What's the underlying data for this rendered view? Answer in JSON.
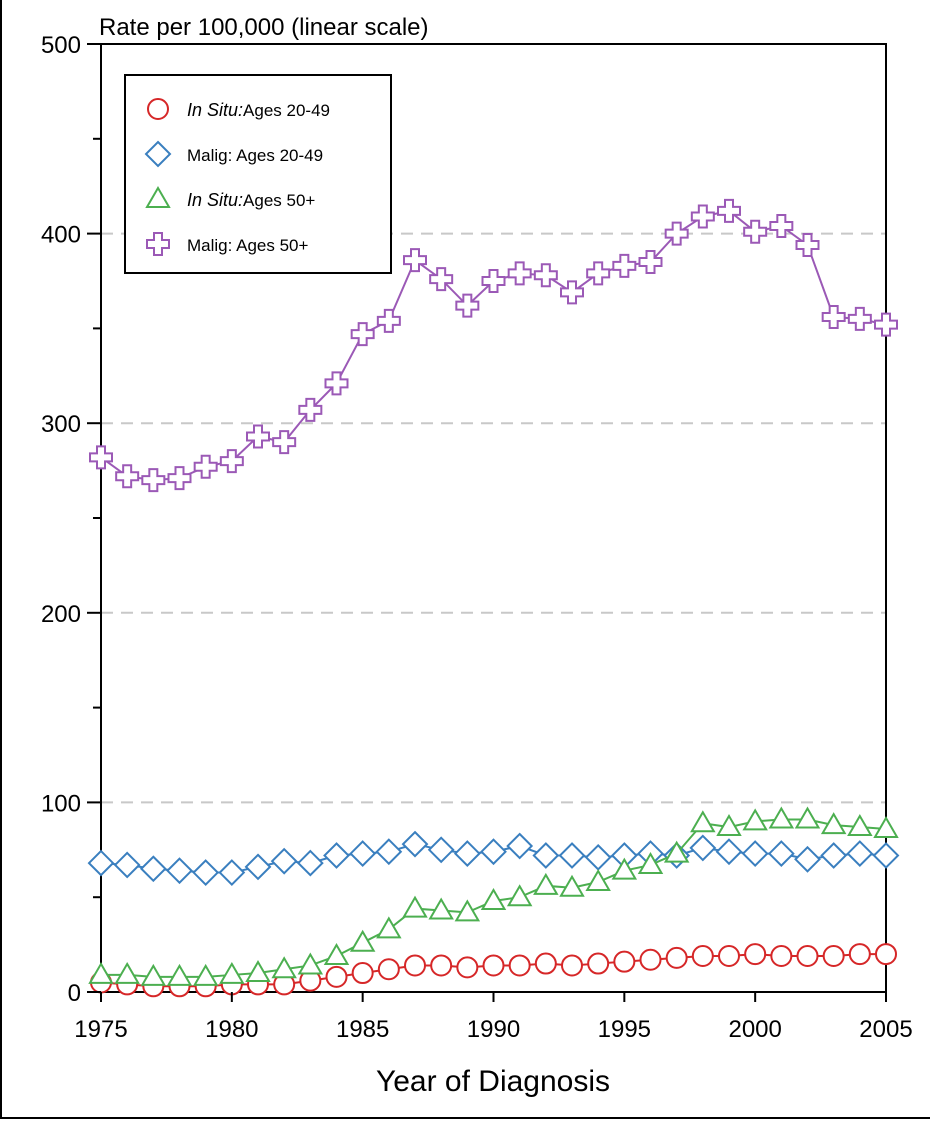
{
  "chart_data": {
    "type": "line",
    "ylabel": "Rate per 100,000 (linear scale)",
    "xlabel": "Year of Diagnosis",
    "xlim": [
      1975,
      2005
    ],
    "ylim": [
      0,
      500
    ],
    "x_ticks": [
      1975,
      1980,
      1985,
      1990,
      1995,
      2000,
      2005
    ],
    "y_ticks": [
      0,
      100,
      200,
      300,
      400,
      500
    ],
    "grid": "horizontal dashed at 100, 200, 300, 400",
    "legend_position": "top-left",
    "x": [
      1975,
      1976,
      1977,
      1978,
      1979,
      1980,
      1981,
      1982,
      1983,
      1984,
      1985,
      1986,
      1987,
      1988,
      1989,
      1990,
      1991,
      1992,
      1993,
      1994,
      1995,
      1996,
      1997,
      1998,
      1999,
      2000,
      2001,
      2002,
      2003,
      2004,
      2005
    ],
    "series": [
      {
        "legend_italic": "In Situ:",
        "legend_rest": "Ages 20-49",
        "marker": "circle",
        "color": "#d62728",
        "values": [
          5,
          4,
          3,
          3,
          3,
          4,
          4,
          4,
          6,
          8,
          10,
          12,
          14,
          14,
          13,
          14,
          14,
          15,
          14,
          15,
          16,
          17,
          18,
          19,
          19,
          20,
          19,
          19,
          19,
          20,
          20
        ]
      },
      {
        "legend_italic": "",
        "legend_rest": "Malig: Ages 20-49",
        "marker": "diamond",
        "color": "#3a7fbf",
        "values": [
          68,
          67,
          65,
          64,
          63,
          63,
          66,
          69,
          68,
          72,
          73,
          74,
          78,
          75,
          73,
          74,
          77,
          72,
          72,
          71,
          72,
          73,
          72,
          76,
          74,
          73,
          73,
          70,
          72,
          73,
          72
        ]
      },
      {
        "legend_italic": "In Situ:",
        "legend_rest": "Ages 50+",
        "marker": "triangle",
        "color": "#4caf50",
        "values": [
          9,
          9,
          8,
          8,
          8,
          9,
          10,
          12,
          14,
          19,
          26,
          33,
          44,
          43,
          42,
          48,
          50,
          56,
          55,
          58,
          64,
          67,
          73,
          89,
          87,
          90,
          91,
          91,
          88,
          87,
          86
        ]
      },
      {
        "legend_italic": "",
        "legend_rest": "Malig: Ages 50+",
        "marker": "plus",
        "color": "#9b59b6",
        "values": [
          282,
          272,
          270,
          271,
          277,
          280,
          293,
          290,
          307,
          321,
          347,
          354,
          386,
          376,
          362,
          375,
          379,
          378,
          369,
          379,
          383,
          385,
          400,
          409,
          412,
          401,
          404,
          394,
          356,
          355,
          352
        ]
      }
    ]
  }
}
